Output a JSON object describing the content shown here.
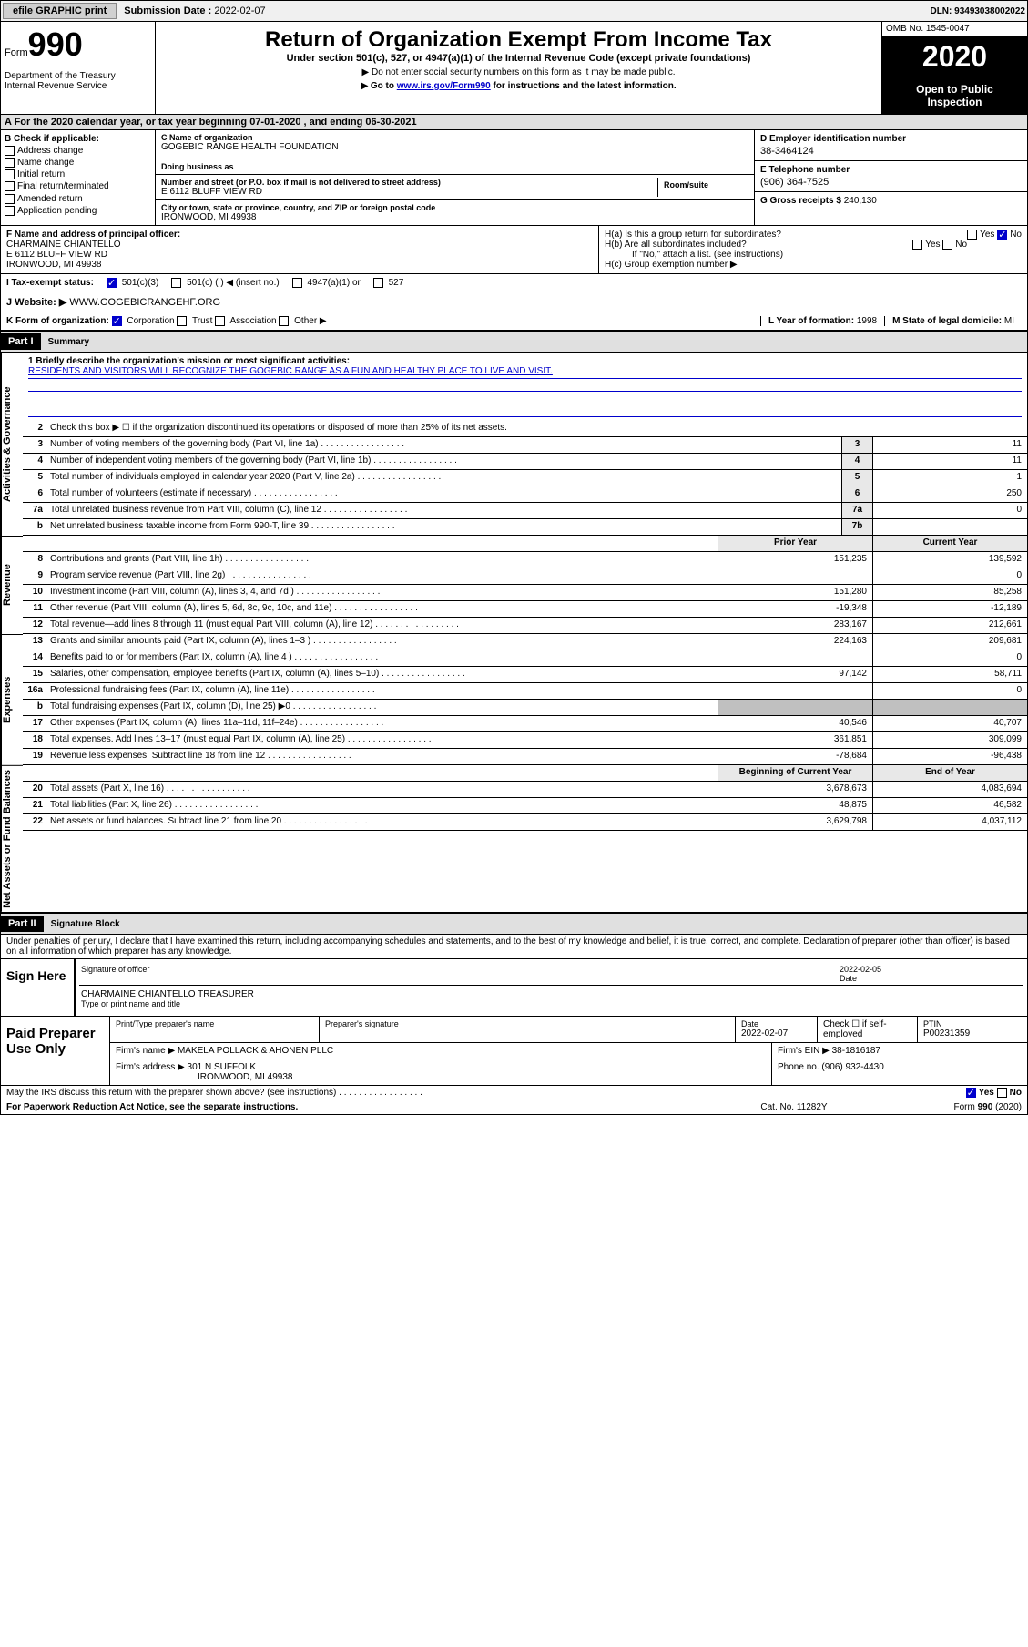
{
  "topbar": {
    "efile": "efile GRAPHIC print",
    "sub_lbl": "Submission Date :",
    "sub_val": "2022-02-07",
    "dln": "DLN: 93493038002022"
  },
  "hdr": {
    "form": "Form",
    "num": "990",
    "dept": "Department of the Treasury\nInternal Revenue Service",
    "title": "Return of Organization Exempt From Income Tax",
    "sub": "Under section 501(c), 527, or 4947(a)(1) of the Internal Revenue Code (except private foundations)",
    "note1": "▶ Do not enter social security numbers on this form as it may be made public.",
    "note2_pre": "▶ Go to ",
    "note2_link": "www.irs.gov/Form990",
    "note2_post": " for instructions and the latest information.",
    "omb": "OMB No. 1545-0047",
    "year": "2020",
    "inspect": "Open to Public Inspection"
  },
  "period": "A For the 2020 calendar year, or tax year beginning 07-01-2020    , and ending 06-30-2021",
  "B": {
    "hdr": "B Check if applicable:",
    "items": [
      "Address change",
      "Name change",
      "Initial return",
      "Final return/terminated",
      "Amended return",
      "Application pending"
    ]
  },
  "C": {
    "name_lbl": "C Name of organization",
    "name": "GOGEBIC RANGE HEALTH FOUNDATION",
    "dba_lbl": "Doing business as",
    "addr_lbl": "Number and street (or P.O. box if mail is not delivered to street address)",
    "addr": "E 6112 BLUFF VIEW RD",
    "room_lbl": "Room/suite",
    "city_lbl": "City or town, state or province, country, and ZIP or foreign postal code",
    "city": "IRONWOOD, MI  49938"
  },
  "D": {
    "lbl": "D Employer identification number",
    "val": "38-3464124"
  },
  "E": {
    "lbl": "E Telephone number",
    "val": "(906) 364-7525"
  },
  "G": {
    "lbl": "G Gross receipts $",
    "val": "240,130"
  },
  "F": {
    "lbl": "F Name and address of principal officer:",
    "name": "CHARMAINE CHIANTELLO",
    "addr1": "E 6112 BLUFF VIEW RD",
    "addr2": "IRONWOOD, MI  49938"
  },
  "H": {
    "a": "H(a)  Is this a group return for subordinates?",
    "b": "H(b)  Are all subordinates included?",
    "b_note": "If \"No,\" attach a list. (see instructions)",
    "c": "H(c)  Group exemption number ▶",
    "yes": "Yes",
    "no": "No"
  },
  "I": {
    "lbl": "I  Tax-exempt status:",
    "opt1": "501(c)(3)",
    "opt2": "501(c) (  ) ◀ (insert no.)",
    "opt3": "4947(a)(1) or",
    "opt4": "527"
  },
  "J": {
    "lbl": "J  Website: ▶",
    "val": "WWW.GOGEBICRANGEHF.ORG"
  },
  "K": {
    "lbl": "K Form of organization:",
    "opts": [
      "Corporation",
      "Trust",
      "Association",
      "Other ▶"
    ]
  },
  "L": {
    "lbl": "L Year of formation:",
    "val": "1998"
  },
  "M": {
    "lbl": "M State of legal domicile:",
    "val": "MI"
  },
  "part1": {
    "hdr": "Part I",
    "title": "Summary",
    "sections": {
      "gov": "Activities & Governance",
      "rev": "Revenue",
      "exp": "Expenses",
      "net": "Net Assets or Fund Balances"
    },
    "mission_lbl": "1  Briefly describe the organization's mission or most significant activities:",
    "mission": "RESIDENTS AND VISITORS WILL RECOGNIZE THE GOGEBIC RANGE AS A FUN AND HEALTHY PLACE TO LIVE AND VISIT.",
    "line2": "Check this box ▶ ☐  if the organization discontinued its operations or disposed of more than 25% of its net assets.",
    "lines_single": [
      {
        "n": "3",
        "d": "Number of voting members of the governing body (Part VI, line 1a)",
        "b": "3",
        "v": "11"
      },
      {
        "n": "4",
        "d": "Number of independent voting members of the governing body (Part VI, line 1b)",
        "b": "4",
        "v": "11"
      },
      {
        "n": "5",
        "d": "Total number of individuals employed in calendar year 2020 (Part V, line 2a)",
        "b": "5",
        "v": "1"
      },
      {
        "n": "6",
        "d": "Total number of volunteers (estimate if necessary)",
        "b": "6",
        "v": "250"
      },
      {
        "n": "7a",
        "d": "Total unrelated business revenue from Part VIII, column (C), line 12",
        "b": "7a",
        "v": "0"
      },
      {
        "n": "b",
        "d": "Net unrelated business taxable income from Form 990-T, line 39",
        "b": "7b",
        "v": ""
      }
    ],
    "col_prior": "Prior Year",
    "col_curr": "Current Year",
    "rev_lines": [
      {
        "n": "8",
        "d": "Contributions and grants (Part VIII, line 1h)",
        "p": "151,235",
        "c": "139,592"
      },
      {
        "n": "9",
        "d": "Program service revenue (Part VIII, line 2g)",
        "p": "",
        "c": "0"
      },
      {
        "n": "10",
        "d": "Investment income (Part VIII, column (A), lines 3, 4, and 7d )",
        "p": "151,280",
        "c": "85,258"
      },
      {
        "n": "11",
        "d": "Other revenue (Part VIII, column (A), lines 5, 6d, 8c, 9c, 10c, and 11e)",
        "p": "-19,348",
        "c": "-12,189"
      },
      {
        "n": "12",
        "d": "Total revenue—add lines 8 through 11 (must equal Part VIII, column (A), line 12)",
        "p": "283,167",
        "c": "212,661"
      }
    ],
    "exp_lines": [
      {
        "n": "13",
        "d": "Grants and similar amounts paid (Part IX, column (A), lines 1–3 )",
        "p": "224,163",
        "c": "209,681"
      },
      {
        "n": "14",
        "d": "Benefits paid to or for members (Part IX, column (A), line 4 )",
        "p": "",
        "c": "0"
      },
      {
        "n": "15",
        "d": "Salaries, other compensation, employee benefits (Part IX, column (A), lines 5–10)",
        "p": "97,142",
        "c": "58,711"
      },
      {
        "n": "16a",
        "d": "Professional fundraising fees (Part IX, column (A), line 11e)",
        "p": "",
        "c": "0"
      },
      {
        "n": "b",
        "d": "Total fundraising expenses (Part IX, column (D), line 25) ▶0",
        "p": "GRAY",
        "c": "GRAY"
      },
      {
        "n": "17",
        "d": "Other expenses (Part IX, column (A), lines 11a–11d, 11f–24e)",
        "p": "40,546",
        "c": "40,707"
      },
      {
        "n": "18",
        "d": "Total expenses. Add lines 13–17 (must equal Part IX, column (A), line 25)",
        "p": "361,851",
        "c": "309,099"
      },
      {
        "n": "19",
        "d": "Revenue less expenses. Subtract line 18 from line 12",
        "p": "-78,684",
        "c": "-96,438"
      }
    ],
    "col_beg": "Beginning of Current Year",
    "col_end": "End of Year",
    "net_lines": [
      {
        "n": "20",
        "d": "Total assets (Part X, line 16)",
        "p": "3,678,673",
        "c": "4,083,694"
      },
      {
        "n": "21",
        "d": "Total liabilities (Part X, line 26)",
        "p": "48,875",
        "c": "46,582"
      },
      {
        "n": "22",
        "d": "Net assets or fund balances. Subtract line 21 from line 20",
        "p": "3,629,798",
        "c": "4,037,112"
      }
    ]
  },
  "part2": {
    "hdr": "Part II",
    "title": "Signature Block",
    "decl": "Under penalties of perjury, I declare that I have examined this return, including accompanying schedules and statements, and to the best of my knowledge and belief, it is true, correct, and complete. Declaration of preparer (other than officer) is based on all information of which preparer has any knowledge."
  },
  "sign": {
    "here": "Sign Here",
    "sig_lbl": "Signature of officer",
    "date_lbl": "Date",
    "date": "2022-02-05",
    "name": "CHARMAINE CHIANTELLO  TREASURER",
    "name_lbl": "Type or print name and title"
  },
  "paid": {
    "here": "Paid Preparer Use Only",
    "r1": {
      "c1_lbl": "Print/Type preparer's name",
      "c2_lbl": "Preparer's signature",
      "c3_lbl": "Date",
      "c3": "2022-02-07",
      "c4": "Check ☐ if self-employed",
      "c5_lbl": "PTIN",
      "c5": "P00231359"
    },
    "r2": {
      "lbl": "Firm's name    ▶",
      "val": "MAKELA POLLACK & AHONEN PLLC",
      "ein_lbl": "Firm's EIN ▶",
      "ein": "38-1816187"
    },
    "r3": {
      "lbl": "Firm's address ▶",
      "val1": "301 N SUFFOLK",
      "val2": "IRONWOOD, MI  49938",
      "ph_lbl": "Phone no.",
      "ph": "(906) 932-4430"
    }
  },
  "discuss": "May the IRS discuss this return with the preparer shown above? (see instructions)",
  "footer": {
    "left": "For Paperwork Reduction Act Notice, see the separate instructions.",
    "mid": "Cat. No. 11282Y",
    "right": "Form 990 (2020)"
  },
  "yes": "Yes",
  "no": "No"
}
